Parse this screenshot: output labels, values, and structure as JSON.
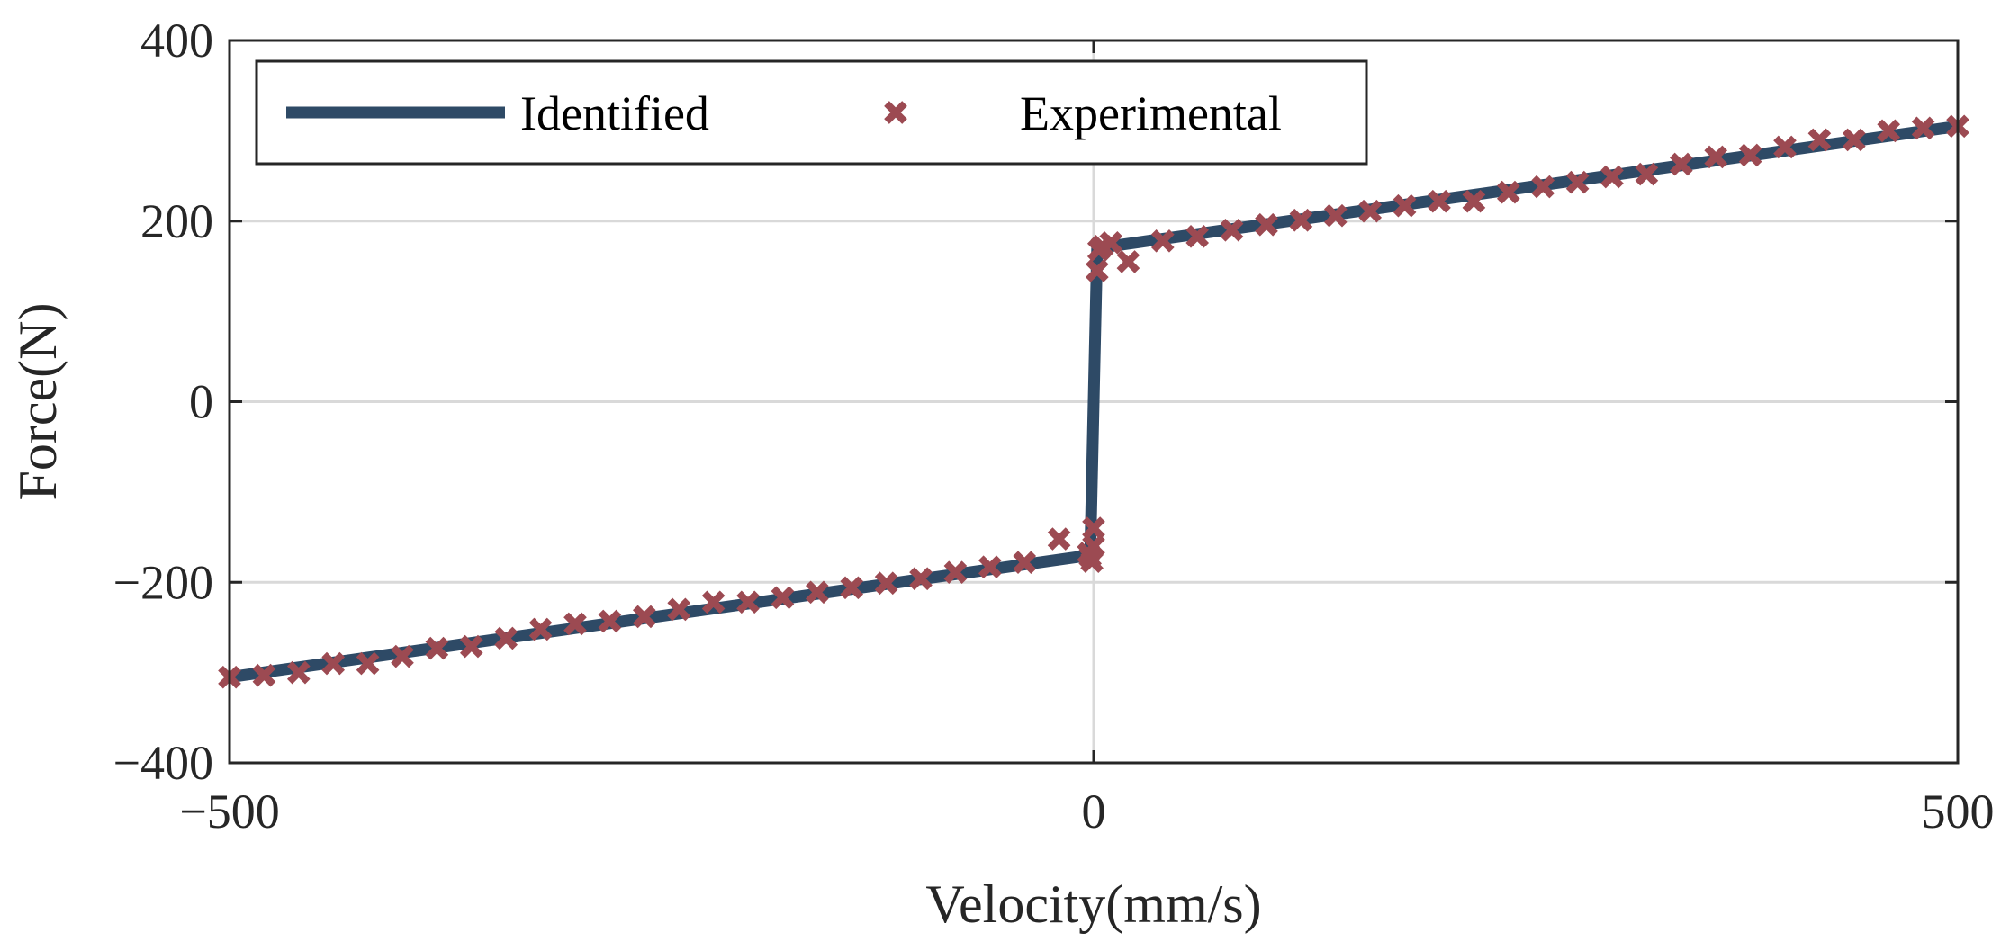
{
  "chart_data": {
    "type": "line",
    "title": "",
    "xlabel": "Velocity(mm/s)",
    "ylabel": "Force(N)",
    "xlim": [
      -500,
      500
    ],
    "ylim": [
      -400,
      400
    ],
    "xticks": [
      -500,
      0,
      500
    ],
    "yticks": [
      -400,
      -200,
      0,
      200,
      400
    ],
    "xtick_labels": [
      "−500",
      "0",
      "500"
    ],
    "ytick_labels": [
      "−400",
      "−200",
      "0",
      "200",
      "400"
    ],
    "grid": true,
    "legend_position": "top",
    "colors": {
      "identified": "#2e4a66",
      "experimental": "#9c4a52",
      "grid": "#d9d9d9",
      "axes": "#262626"
    },
    "series": [
      {
        "name": "Identified",
        "style": "line",
        "x": [
          -500,
          -2,
          2,
          500
        ],
        "y": [
          -305,
          -170,
          170,
          305
        ]
      },
      {
        "name": "Experimental",
        "style": "marker-x",
        "x": [
          -500,
          -480,
          -460,
          -440,
          -420,
          -400,
          -380,
          -360,
          -340,
          -320,
          -300,
          -280,
          -260,
          -240,
          -220,
          -200,
          -180,
          -160,
          -140,
          -120,
          -100,
          -80,
          -60,
          -40,
          -20,
          -3,
          -2,
          -1,
          0,
          0,
          2,
          3,
          5,
          10,
          20,
          40,
          60,
          80,
          100,
          120,
          140,
          160,
          180,
          200,
          220,
          240,
          260,
          280,
          300,
          320,
          340,
          360,
          380,
          400,
          420,
          440,
          460,
          480,
          500
        ],
        "y": [
          -305,
          -303,
          -300,
          -290,
          -290,
          -282,
          -273,
          -271,
          -262,
          -252,
          -246,
          -243,
          -238,
          -230,
          -222,
          -222,
          -217,
          -211,
          -206,
          -201,
          -196,
          -189,
          -183,
          -178,
          -152,
          -168,
          -172,
          -177,
          -160,
          -140,
          145,
          168,
          172,
          176,
          155,
          178,
          183,
          190,
          196,
          201,
          206,
          211,
          217,
          222,
          222,
          232,
          238,
          243,
          249,
          252,
          263,
          271,
          273,
          282,
          290,
          290,
          300,
          303,
          305
        ]
      }
    ]
  }
}
